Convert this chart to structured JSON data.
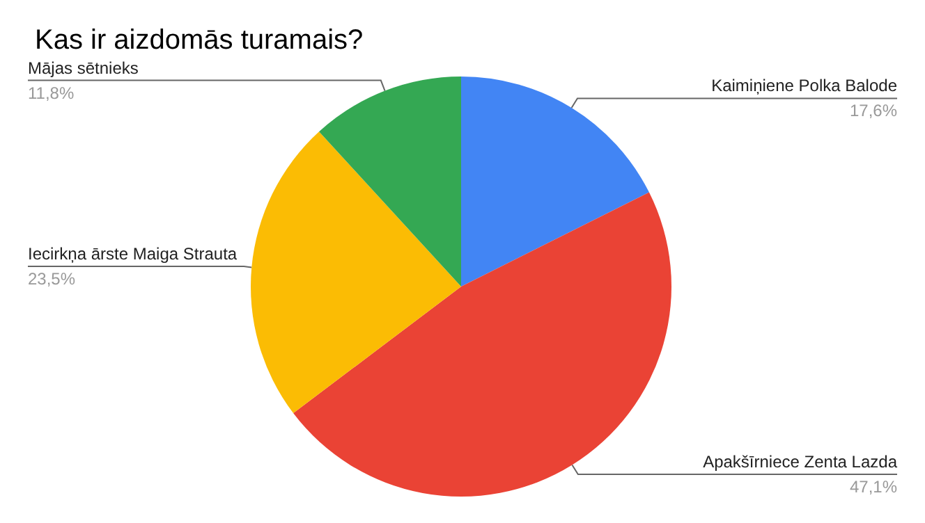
{
  "chart_data": {
    "type": "pie",
    "title": "Kas ir aizdomās turamais?",
    "categories": [
      "Kaimiņiene Polka Balode",
      "Apakšīrniece Zenta Lazda",
      "Iecirkņa ārste Maiga Strauta",
      "Mājas sētnieks"
    ],
    "values": [
      17.6,
      47.1,
      23.5,
      11.8
    ],
    "colors": [
      "#4285f4",
      "#ea4335",
      "#fbbc04",
      "#34a853"
    ],
    "value_labels": [
      "17,6%",
      "47,1%",
      "23,5%",
      "11,8%"
    ],
    "legend": false
  }
}
